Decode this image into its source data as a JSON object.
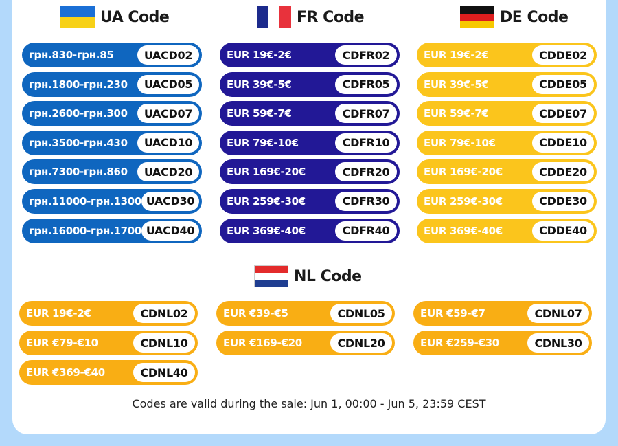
{
  "headers": {
    "ua": "UA Code",
    "fr": "FR Code",
    "de": "DE Code",
    "nl": "NL Code"
  },
  "ua": [
    {
      "range": "грн.830-грн.85",
      "code": "UACD02"
    },
    {
      "range": "грн.1800-грн.230",
      "code": "UACD05"
    },
    {
      "range": "грн.2600-грн.300",
      "code": "UACD07"
    },
    {
      "range": "грн.3500-грн.430",
      "code": "UACD10"
    },
    {
      "range": "грн.7300-грн.860",
      "code": "UACD20"
    },
    {
      "range": "грн.11000-грн.1300",
      "code": "UACD30"
    },
    {
      "range": "грн.16000-грн.1700",
      "code": "UACD40"
    }
  ],
  "fr": [
    {
      "range": "EUR 19€-2€",
      "code": "CDFR02"
    },
    {
      "range": "EUR 39€-5€",
      "code": "CDFR05"
    },
    {
      "range": "EUR 59€-7€",
      "code": "CDFR07"
    },
    {
      "range": "EUR 79€-10€",
      "code": "CDFR10"
    },
    {
      "range": "EUR 169€-20€",
      "code": "CDFR20"
    },
    {
      "range": "EUR 259€-30€",
      "code": "CDFR30"
    },
    {
      "range": "EUR 369€-40€",
      "code": "CDFR40"
    }
  ],
  "de": [
    {
      "range": "EUR 19€-2€",
      "code": "CDDE02"
    },
    {
      "range": "EUR 39€-5€",
      "code": "CDDE05"
    },
    {
      "range": "EUR 59€-7€",
      "code": "CDDE07"
    },
    {
      "range": "EUR 79€-10€",
      "code": "CDDE10"
    },
    {
      "range": "EUR 169€-20€",
      "code": "CDDE20"
    },
    {
      "range": "EUR 259€-30€",
      "code": "CDDE30"
    },
    {
      "range": "EUR 369€-40€",
      "code": "CDDE40"
    }
  ],
  "nl": [
    {
      "range": "EUR 19€-2€",
      "code": "CDNL02"
    },
    {
      "range": "EUR €39-€5",
      "code": "CDNL05"
    },
    {
      "range": "EUR €59-€7",
      "code": "CDNL07"
    },
    {
      "range": "EUR €79-€10",
      "code": "CDNL10"
    },
    {
      "range": "EUR €169-€20",
      "code": "CDNL20"
    },
    {
      "range": "EUR €259-€30",
      "code": "CDNL30"
    },
    {
      "range": "EUR €369-€40",
      "code": "CDNL40"
    }
  ],
  "footer": "Codes are valid during the sale:  Jun 1, 00:00 - Jun 5, 23:59 CEST",
  "colors": {
    "ua": "#0f66bf",
    "fr": "#221896",
    "de": "#fbc51c",
    "nl": "#f9ae14",
    "bg": "#b3d9fb"
  }
}
